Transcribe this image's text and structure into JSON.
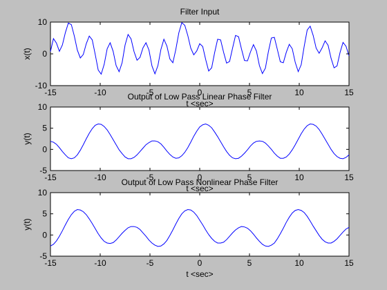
{
  "colors": {
    "figure_background": "#c0c0c0",
    "axes_background": "#ffffff",
    "axis_color": "#000000",
    "line_color": "#0000ff"
  },
  "chart_data": [
    {
      "type": "line",
      "title": "Filter Input",
      "xlabel": "t <sec>",
      "ylabel": "x(t)",
      "xlim": [
        -15,
        15
      ],
      "ylim": [
        -10,
        10
      ],
      "xticks": [
        -15,
        -10,
        -5,
        0,
        5,
        10,
        15
      ],
      "yticks": [
        -10,
        0,
        10
      ],
      "grid": false,
      "series": [
        {
          "color": "#0000ff",
          "x": [
            -15,
            -14.7,
            -14.4,
            -14.1,
            -13.8,
            -13.5,
            -13.2,
            -12.9,
            -12.6,
            -12.3,
            -12,
            -11.7,
            -11.4,
            -11.1,
            -10.8,
            -10.5,
            -10.2,
            -9.9,
            -9.6,
            -9.3,
            -9,
            -8.7,
            -8.4,
            -8.1,
            -7.8,
            -7.5,
            -7.2,
            -6.9,
            -6.6,
            -6.3,
            -6,
            -5.7,
            -5.4,
            -5.1,
            -4.8,
            -4.5,
            -4.2,
            -3.9,
            -3.6,
            -3.3,
            -3,
            -2.7,
            -2.4,
            -2.1,
            -1.8,
            -1.5,
            -1.2,
            -0.9,
            -0.6,
            -0.3,
            0,
            0.3,
            0.6,
            0.9,
            1.2,
            1.5,
            1.8,
            2.1,
            2.4,
            2.7,
            3,
            3.3,
            3.6,
            3.9,
            4.2,
            4.5,
            4.8,
            5.1,
            5.4,
            5.7,
            6,
            6.3,
            6.6,
            6.9,
            7.2,
            7.5,
            7.8,
            8.1,
            8.4,
            8.7,
            9,
            9.3,
            9.6,
            9.9,
            10.2,
            10.5,
            10.8,
            11.1,
            11.4,
            11.7,
            12,
            12.3,
            12.6,
            12.9,
            13.2,
            13.5,
            13.8,
            14.1,
            14.4,
            14.7,
            15
          ],
          "y": [
            0.7,
            4.8,
            3.4,
            0.8,
            2.8,
            6.7,
            9.7,
            9.2,
            5.6,
            1.2,
            -1.3,
            -0.2,
            3.2,
            5.6,
            4.4,
            -0.2,
            -5.1,
            -6.4,
            -3.3,
            1.6,
            3.5,
            0.8,
            -3.7,
            -5.6,
            -2.8,
            2.8,
            6.1,
            4.7,
            0.7,
            -2.0,
            -1.1,
            1.9,
            3.5,
            1.2,
            -3.8,
            -6.3,
            -3.7,
            1.4,
            4.6,
            2.5,
            -1.6,
            -2.8,
            1.4,
            6.6,
            9.8,
            9.0,
            5.8,
            1.8,
            -0.3,
            0.9,
            3.2,
            2.3,
            -1.8,
            -5.4,
            -4.4,
            0.4,
            4.6,
            4.4,
            0.5,
            -2.9,
            -2.4,
            1.8,
            5.8,
            5.4,
            1.5,
            -2.1,
            -2.2,
            0.6,
            2.9,
            0.9,
            -3.7,
            -6.2,
            -4.5,
            0.7,
            5.0,
            5.2,
            1.4,
            -2.5,
            -2.8,
            0.5,
            3.0,
            1.6,
            -2.7,
            -5.6,
            -3.4,
            2.4,
            7.5,
            8.7,
            5.8,
            1.8,
            0.2,
            1.9,
            4.1,
            2.7,
            -1.4,
            -4.4,
            -3.8,
            0.4,
            3.6,
            2.4,
            -0.6
          ]
        }
      ]
    },
    {
      "type": "line",
      "title": "Output of Low Pass Linear Phase Filter",
      "xlabel": "t <sec>",
      "ylabel": "y(t)",
      "xlim": [
        -15,
        15
      ],
      "ylim": [
        -5,
        10
      ],
      "xticks": [
        -15,
        -10,
        -5,
        0,
        5,
        10,
        15
      ],
      "yticks": [
        -5,
        0,
        5,
        10
      ],
      "grid": false,
      "series": [
        {
          "color": "#0000ff",
          "x": [
            -15,
            -14.7,
            -14.4,
            -14.1,
            -13.8,
            -13.5,
            -13.2,
            -12.9,
            -12.6,
            -12.3,
            -12,
            -11.7,
            -11.4,
            -11.1,
            -10.8,
            -10.5,
            -10.2,
            -9.9,
            -9.6,
            -9.3,
            -9,
            -8.7,
            -8.4,
            -8.1,
            -7.8,
            -7.5,
            -7.2,
            -6.9,
            -6.6,
            -6.3,
            -6,
            -5.7,
            -5.4,
            -5.1,
            -4.8,
            -4.5,
            -4.2,
            -3.9,
            -3.6,
            -3.3,
            -3,
            -2.7,
            -2.4,
            -2.1,
            -1.8,
            -1.5,
            -1.2,
            -0.9,
            -0.6,
            -0.3,
            0,
            0.3,
            0.6,
            0.9,
            1.2,
            1.5,
            1.8,
            2.1,
            2.4,
            2.7,
            3,
            3.3,
            3.6,
            3.9,
            4.2,
            4.5,
            4.8,
            5.1,
            5.4,
            5.7,
            6,
            6.3,
            6.6,
            6.9,
            7.2,
            7.5,
            7.8,
            8.1,
            8.4,
            8.7,
            9,
            9.3,
            9.6,
            9.9,
            10.2,
            10.5,
            10.8,
            11.1,
            11.4,
            11.7,
            12,
            12.3,
            12.6,
            12.9,
            13.2,
            13.5,
            13.8,
            14.1,
            14.4,
            14.7,
            15
          ],
          "y": [
            1.9,
            1.7,
            1.2,
            0.4,
            -0.5,
            -1.3,
            -2.0,
            -2.2,
            -2.0,
            -1.3,
            -0.2,
            1.1,
            2.5,
            3.8,
            4.9,
            5.7,
            6.0,
            5.9,
            5.4,
            4.6,
            3.5,
            2.3,
            1.1,
            -0.1,
            -1.0,
            -1.8,
            -2.2,
            -2.2,
            -1.9,
            -1.3,
            -0.5,
            0.3,
            1.1,
            1.6,
            2.0,
            2.0,
            1.8,
            1.3,
            0.5,
            -0.4,
            -1.2,
            -1.8,
            -2.1,
            -2.0,
            -1.5,
            -0.7,
            0.4,
            1.7,
            3.1,
            4.3,
            5.3,
            5.8,
            6.0,
            5.7,
            5.1,
            4.1,
            3.0,
            1.8,
            0.6,
            -0.5,
            -1.4,
            -2.0,
            -2.2,
            -2.1,
            -1.6,
            -0.9,
            -0.1,
            0.8,
            1.5,
            1.9,
            2.0,
            1.9,
            1.5,
            0.8,
            -0.0,
            -0.9,
            -1.6,
            -2.1,
            -2.1,
            -1.8,
            -1.1,
            -0.1,
            1.1,
            2.4,
            3.7,
            4.8,
            5.6,
            6.0,
            5.9,
            5.5,
            4.7,
            3.6,
            2.4,
            1.2,
            0.0,
            -1.0,
            -1.7,
            -2.1,
            -2.2,
            -1.9,
            -1.3
          ]
        }
      ]
    },
    {
      "type": "line",
      "title": "Output of Low Pass Nonlinear Phase Filter",
      "xlabel": "t <sec>",
      "ylabel": "y(t)",
      "xlim": [
        -15,
        15
      ],
      "ylim": [
        -5,
        10
      ],
      "xticks": [
        -15,
        -10,
        -5,
        0,
        5,
        10,
        15
      ],
      "yticks": [
        -5,
        0,
        5,
        10
      ],
      "grid": false,
      "series": [
        {
          "color": "#0000ff",
          "x": [
            -15,
            -14.7,
            -14.4,
            -14.1,
            -13.8,
            -13.5,
            -13.2,
            -12.9,
            -12.6,
            -12.3,
            -12,
            -11.7,
            -11.4,
            -11.1,
            -10.8,
            -10.5,
            -10.2,
            -9.9,
            -9.6,
            -9.3,
            -9,
            -8.7,
            -8.4,
            -8.1,
            -7.8,
            -7.5,
            -7.2,
            -6.9,
            -6.6,
            -6.3,
            -6,
            -5.7,
            -5.4,
            -5.1,
            -4.8,
            -4.5,
            -4.2,
            -3.9,
            -3.6,
            -3.3,
            -3,
            -2.7,
            -2.4,
            -2.1,
            -1.8,
            -1.5,
            -1.2,
            -0.9,
            -0.6,
            -0.3,
            0,
            0.3,
            0.6,
            0.9,
            1.2,
            1.5,
            1.8,
            2.1,
            2.4,
            2.7,
            3,
            3.3,
            3.6,
            3.9,
            4.2,
            4.5,
            4.8,
            5.1,
            5.4,
            5.7,
            6,
            6.3,
            6.6,
            6.9,
            7.2,
            7.5,
            7.8,
            8.1,
            8.4,
            8.7,
            9,
            9.3,
            9.6,
            9.9,
            10.2,
            10.5,
            10.8,
            11.1,
            11.4,
            11.7,
            12,
            12.3,
            12.6,
            12.9,
            13.2,
            13.5,
            13.8,
            14.1,
            14.4,
            14.7,
            15
          ],
          "y": [
            -2.6,
            -2.2,
            -1.4,
            -0.3,
            1.0,
            2.4,
            3.7,
            4.8,
            5.6,
            6.0,
            5.9,
            5.5,
            4.8,
            3.8,
            2.7,
            1.5,
            0.3,
            -0.7,
            -1.5,
            -1.9,
            -2.0,
            -1.8,
            -1.2,
            -0.4,
            0.4,
            1.1,
            1.7,
            2.0,
            2.0,
            1.8,
            1.3,
            0.5,
            -0.3,
            -1.2,
            -1.9,
            -2.4,
            -2.7,
            -2.6,
            -2.1,
            -1.3,
            -0.1,
            1.2,
            2.6,
            3.9,
            5.0,
            5.7,
            6.0,
            5.9,
            5.4,
            4.6,
            3.5,
            2.4,
            1.2,
            0.1,
            -0.8,
            -1.5,
            -1.9,
            -1.9,
            -1.7,
            -1.1,
            -0.3,
            0.5,
            1.2,
            1.7,
            2.0,
            1.9,
            1.6,
            1.0,
            0.2,
            -0.7,
            -1.5,
            -2.2,
            -2.6,
            -2.7,
            -2.4,
            -1.9,
            -0.9,
            0.3,
            1.6,
            3.0,
            4.2,
            5.2,
            5.8,
            6.0,
            5.8,
            5.3,
            4.4,
            3.3,
            2.1,
            1.0,
            -0.1,
            -1.0,
            -1.6,
            -1.9,
            -1.9,
            -1.5,
            -0.9,
            -0.1,
            0.7,
            1.4,
            1.8
          ]
        }
      ]
    }
  ]
}
